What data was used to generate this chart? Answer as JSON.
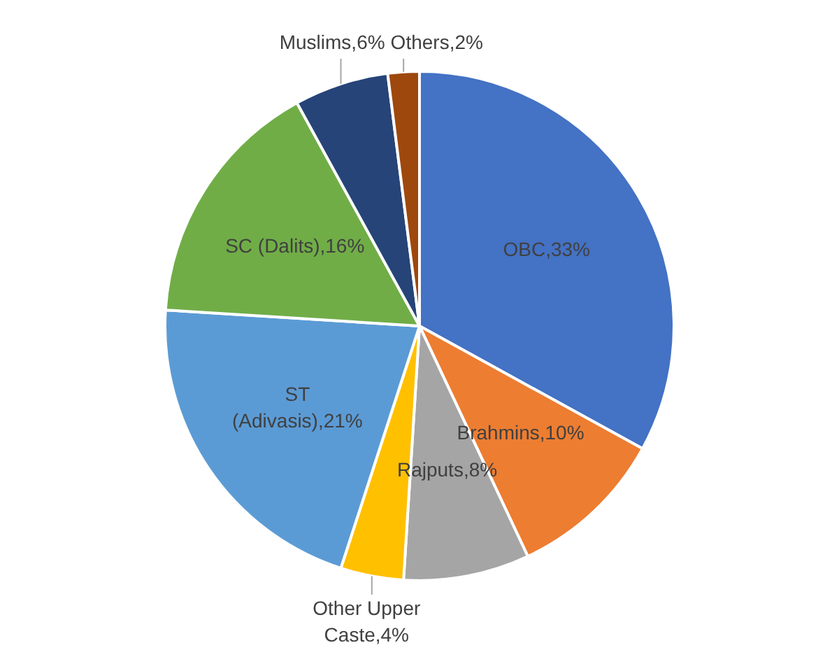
{
  "chart_data": {
    "type": "pie",
    "categories": [
      "OBC",
      "Brahmins",
      "Rajputs",
      "Other Upper Caste",
      "ST (Adivasis)",
      "SC (Dalits)",
      "Muslims",
      "Others"
    ],
    "values": [
      33,
      10,
      8,
      4,
      21,
      16,
      6,
      2
    ],
    "colors": [
      "#4472c4",
      "#ed7d31",
      "#a5a5a5",
      "#ffc000",
      "#5b9bd5",
      "#70ad47",
      "#264478",
      "#9e480e"
    ],
    "value_labels": [
      "33%",
      "10%",
      "8%",
      "4%",
      "21%",
      "16%",
      "6%",
      "2%"
    ],
    "legend": false
  }
}
